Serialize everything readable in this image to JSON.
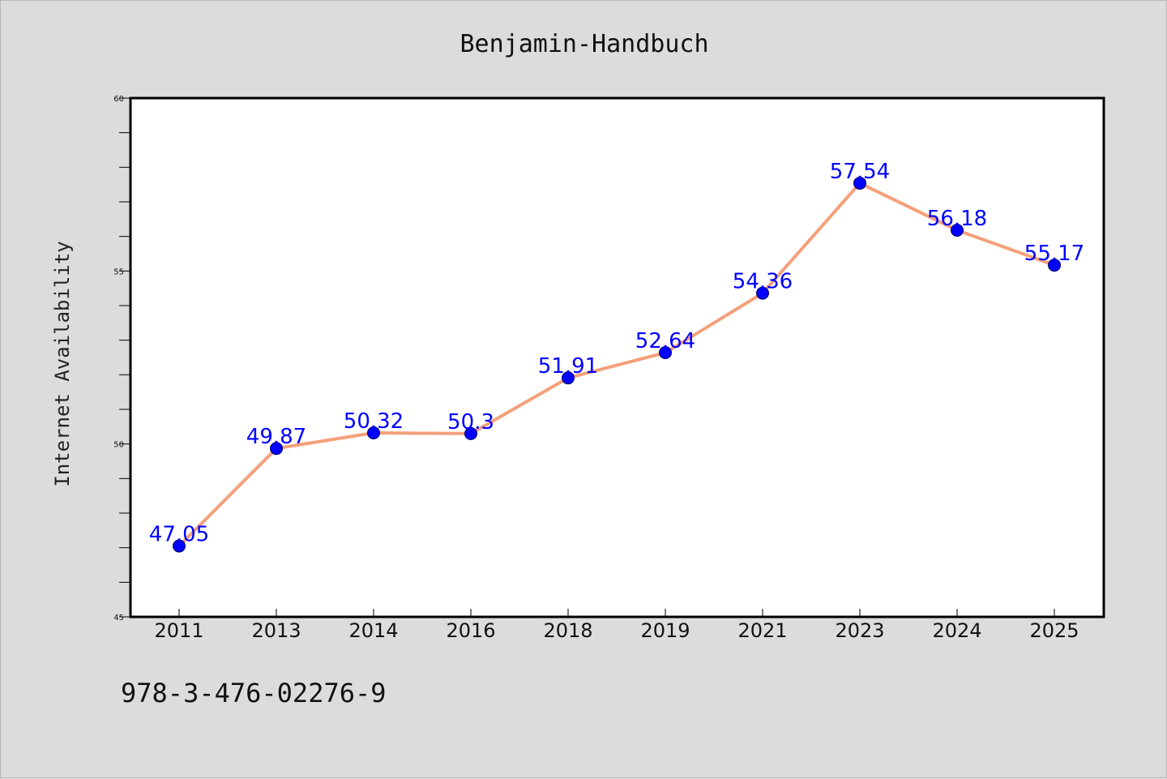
{
  "chart_data": {
    "type": "line",
    "title": "Benjamin-Handbuch",
    "xlabel": "",
    "ylabel": "Internet Availability",
    "categories": [
      "2011",
      "2013",
      "2014",
      "2016",
      "2018",
      "2019",
      "2021",
      "2023",
      "2024",
      "2025"
    ],
    "series": [
      {
        "values": [
          47.05,
          49.87,
          50.32,
          50.3,
          51.91,
          52.64,
          54.36,
          57.54,
          56.18,
          55.17
        ],
        "data_labels": [
          "47.05",
          "49.87",
          "50.32",
          "50.3",
          "51.91",
          "52.64",
          "54.36",
          "57.54",
          "56.18",
          "55.17"
        ],
        "line_color": "#f4a07a",
        "marker_color": "#0000ff"
      }
    ],
    "ylim": [
      45,
      60
    ],
    "yticks": [
      "45",
      "50",
      "55",
      "60"
    ],
    "grid": false,
    "legend": "none"
  },
  "footer": {
    "isbn": "978-3-476-02276-9"
  },
  "colors": {
    "background": "#dcdcdc",
    "plot_area": "#ffffff",
    "axis": "#000000",
    "line": "#f4a07a",
    "marker": "#0000ff",
    "data_label": "#0000ff"
  }
}
